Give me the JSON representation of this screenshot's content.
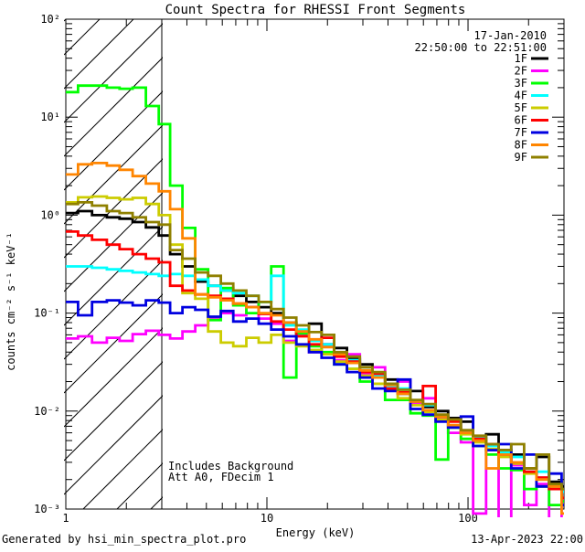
{
  "title": "Count Spectra for RHESSI Front Segments",
  "header": {
    "date_line": "17-Jan-2010",
    "time_range_line": "22:50:00 to 22:51:00"
  },
  "annotations": {
    "line1": "Includes Background",
    "line2": "Att A0, FDecim 1"
  },
  "footer": {
    "left": "Generated by hsi_min_spectra_plot.pro",
    "right": "13-Apr-2023 22:00"
  },
  "axes": {
    "xlabel": "Energy (keV)",
    "ylabel": "counts cm⁻² s⁻¹ keV⁻¹",
    "x_scale": "log",
    "y_scale": "log",
    "xlim": [
      1,
      300
    ],
    "ylim": [
      0.001,
      100
    ],
    "x_ticks": [
      {
        "value": 1,
        "label": "1"
      },
      {
        "value": 10,
        "label": "10"
      },
      {
        "value": 100,
        "label": "100"
      }
    ],
    "y_ticks": [
      {
        "value": 100,
        "label": "10²"
      },
      {
        "value": 10,
        "label": "10¹"
      },
      {
        "value": 1,
        "label": "10⁰"
      },
      {
        "value": 0.1,
        "label": "10⁻¹"
      },
      {
        "value": 0.01,
        "label": "10⁻²"
      },
      {
        "value": 0.001,
        "label": "10⁻³"
      }
    ]
  },
  "hatch_region": {
    "x_range_kev": [
      1,
      3
    ],
    "style": "diagonal-hatch"
  },
  "legend": [
    {
      "label": "1F",
      "color": "#000000"
    },
    {
      "label": "2F",
      "color": "#FF00FF"
    },
    {
      "label": "3F",
      "color": "#00FF00"
    },
    {
      "label": "4F",
      "color": "#00FFFF"
    },
    {
      "label": "5F",
      "color": "#CCCC00"
    },
    {
      "label": "6F",
      "color": "#FF0000"
    },
    {
      "label": "7F",
      "color": "#0000E0"
    },
    {
      "label": "8F",
      "color": "#FF8500"
    },
    {
      "label": "9F",
      "color": "#8F8000"
    }
  ],
  "chart_data": {
    "type": "line",
    "mode": "steps",
    "title": "Count Spectra for RHESSI Front Segments",
    "xlabel": "Energy (keV)",
    "ylabel": "counts cm⁻² s⁻¹ keV⁻¹",
    "xlim": [
      1,
      300
    ],
    "ylim": [
      0.001,
      100
    ],
    "grid": false,
    "legend_position": "top-right-inside",
    "x_edges_kev": [
      1.0,
      1.15,
      1.35,
      1.6,
      1.85,
      2.15,
      2.5,
      2.9,
      3.3,
      3.8,
      4.4,
      5.1,
      5.9,
      6.8,
      7.9,
      9.1,
      10.5,
      12.1,
      14,
      16.2,
      18.7,
      21.6,
      25,
      29,
      33.5,
      38.7,
      44.7,
      51.7,
      59.7,
      69,
      79.7,
      92.1,
      106,
      123,
      142,
      164,
      190,
      219,
      253,
      292
    ],
    "series": [
      {
        "name": "1F",
        "color": "#000000",
        "values": [
          1.05,
          1.1,
          1.0,
          0.95,
          0.92,
          0.85,
          0.75,
          0.62,
          0.4,
          0.3,
          0.21,
          0.19,
          0.17,
          0.15,
          0.13,
          0.115,
          0.1,
          0.08,
          0.062,
          0.078,
          0.048,
          0.044,
          0.034,
          0.03,
          0.022,
          0.021,
          0.015,
          0.016,
          0.011,
          0.01,
          0.0085,
          0.0078,
          0.005,
          0.0058,
          0.004,
          0.0036,
          0.0026,
          0.0034,
          0.0019,
          0.0017
        ]
      },
      {
        "name": "2F",
        "color": "#FF00FF",
        "values": [
          0.055,
          0.058,
          0.05,
          0.056,
          0.052,
          0.061,
          0.066,
          0.06,
          0.055,
          0.065,
          0.075,
          0.09,
          0.1,
          0.095,
          0.115,
          0.088,
          0.078,
          0.052,
          0.06,
          0.04,
          0.048,
          0.033,
          0.038,
          0.024,
          0.028,
          0.018,
          0.02,
          0.012,
          0.0135,
          0.0085,
          0.006,
          0.0048,
          0.0009,
          0.004,
          0.0008,
          0.0028,
          0.0011,
          0.0018,
          0.0007,
          0.0013
        ]
      },
      {
        "name": "3F",
        "color": "#00FF00",
        "values": [
          18,
          21,
          21,
          20,
          19.5,
          20,
          13,
          8.5,
          2.0,
          0.74,
          0.28,
          0.085,
          0.18,
          0.12,
          0.1,
          0.13,
          0.3,
          0.022,
          0.062,
          0.046,
          0.04,
          0.03,
          0.027,
          0.02,
          0.019,
          0.013,
          0.013,
          0.0095,
          0.009,
          0.0032,
          0.0068,
          0.0052,
          0.0044,
          0.0036,
          0.0026,
          0.0025,
          0.0016,
          0.0017,
          0.0011,
          0.0012
        ]
      },
      {
        "name": "4F",
        "color": "#00FFFF",
        "values": [
          0.3,
          0.3,
          0.29,
          0.28,
          0.27,
          0.26,
          0.25,
          0.24,
          0.25,
          0.24,
          0.22,
          0.19,
          0.17,
          0.16,
          0.15,
          0.13,
          0.24,
          0.075,
          0.068,
          0.052,
          0.048,
          0.038,
          0.033,
          0.026,
          0.023,
          0.018,
          0.017,
          0.0125,
          0.0115,
          0.009,
          0.008,
          0.0062,
          0.0054,
          0.0044,
          0.0038,
          0.0034,
          0.0024,
          0.0024,
          0.0016,
          0.0015
        ]
      },
      {
        "name": "5F",
        "color": "#CCCC00",
        "values": [
          1.35,
          1.52,
          1.55,
          1.5,
          1.45,
          1.5,
          1.3,
          1.0,
          0.5,
          0.16,
          0.14,
          0.065,
          0.05,
          0.046,
          0.056,
          0.05,
          0.06,
          0.05,
          0.046,
          0.042,
          0.038,
          0.032,
          0.027,
          0.023,
          0.019,
          0.0165,
          0.0135,
          0.0115,
          0.0098,
          0.0082,
          0.007,
          0.0058,
          0.0048,
          0.0041,
          0.0034,
          0.0029,
          0.0023,
          0.002,
          0.0016,
          0.0013
        ]
      },
      {
        "name": "6F",
        "color": "#FF0000",
        "values": [
          0.68,
          0.62,
          0.56,
          0.5,
          0.45,
          0.4,
          0.36,
          0.33,
          0.19,
          0.17,
          0.155,
          0.15,
          0.14,
          0.125,
          0.115,
          0.098,
          0.082,
          0.068,
          0.058,
          0.048,
          0.056,
          0.036,
          0.032,
          0.025,
          0.024,
          0.017,
          0.0155,
          0.0125,
          0.018,
          0.0088,
          0.0078,
          0.006,
          0.0052,
          0.0046,
          0.0036,
          0.003,
          0.0024,
          0.0021,
          0.0016,
          0.0013
        ]
      },
      {
        "name": "7F",
        "color": "#0000E0",
        "values": [
          0.13,
          0.095,
          0.13,
          0.135,
          0.128,
          0.12,
          0.135,
          0.128,
          0.1,
          0.115,
          0.108,
          0.092,
          0.105,
          0.082,
          0.088,
          0.078,
          0.068,
          0.058,
          0.048,
          0.04,
          0.035,
          0.03,
          0.025,
          0.022,
          0.017,
          0.016,
          0.021,
          0.0105,
          0.0092,
          0.0078,
          0.0068,
          0.0088,
          0.0044,
          0.004,
          0.0046,
          0.0026,
          0.0036,
          0.0017,
          0.0023,
          0.0011
        ]
      },
      {
        "name": "8F",
        "color": "#FF8500",
        "values": [
          2.6,
          3.3,
          3.4,
          3.2,
          2.9,
          2.5,
          2.1,
          1.75,
          1.15,
          0.58,
          0.155,
          0.145,
          0.135,
          0.125,
          0.115,
          0.1,
          0.095,
          0.08,
          0.065,
          0.054,
          0.045,
          0.038,
          0.031,
          0.026,
          0.022,
          0.0185,
          0.015,
          0.0125,
          0.0102,
          0.0088,
          0.0072,
          0.006,
          0.005,
          0.0026,
          0.0036,
          0.003,
          0.0026,
          0.002,
          0.0017,
          0.0009
        ]
      },
      {
        "name": "9F",
        "color": "#8F8000",
        "values": [
          1.3,
          1.35,
          1.25,
          1.1,
          1.05,
          0.95,
          0.85,
          0.8,
          0.44,
          0.36,
          0.26,
          0.24,
          0.2,
          0.17,
          0.15,
          0.13,
          0.11,
          0.09,
          0.075,
          0.064,
          0.06,
          0.04,
          0.036,
          0.028,
          0.025,
          0.019,
          0.0165,
          0.013,
          0.0118,
          0.0092,
          0.0082,
          0.0064,
          0.0056,
          0.0046,
          0.004,
          0.0046,
          0.0026,
          0.0036,
          0.0018,
          0.0016
        ]
      }
    ]
  }
}
